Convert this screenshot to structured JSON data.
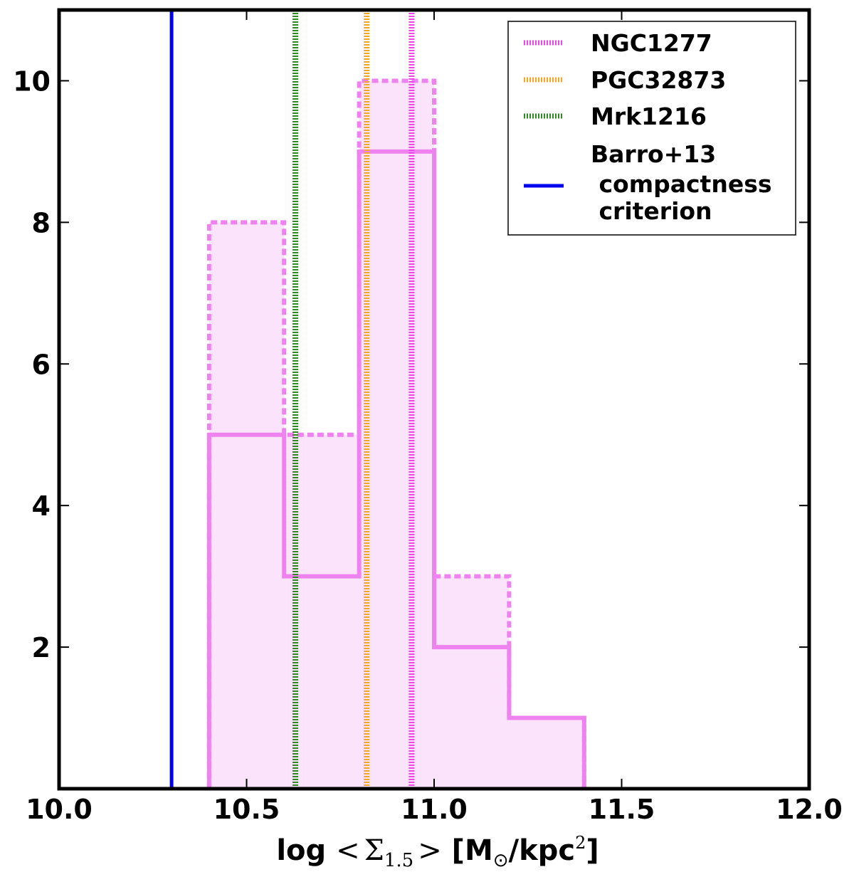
{
  "chart_data": {
    "type": "histogram",
    "xlim": [
      10.0,
      12.0
    ],
    "ylim": [
      0,
      11
    ],
    "x_ticks": [
      10.0,
      10.5,
      11.0,
      11.5,
      12.0
    ],
    "x_tick_labels": [
      "10.0",
      "10.5",
      "11.0",
      "11.5",
      "12.0"
    ],
    "y_ticks": [
      2,
      4,
      6,
      8,
      10
    ],
    "y_tick_labels": [
      "2",
      "4",
      "6",
      "8",
      "10"
    ],
    "xlabel_parts": {
      "prefix": "log ",
      "langle": "<",
      "sigma": "Σ",
      "sigma_sub": "1.5",
      "rangle": ">",
      "unit_open": " [M",
      "sun_sub": "⊙",
      "unit_mid": "/kpc",
      "unit_sup": "2",
      "unit_close": "]"
    },
    "bin_edges": [
      10.4,
      10.6,
      10.8,
      11.0,
      11.2,
      11.4
    ],
    "series": [
      {
        "style": "solid",
        "counts": [
          5,
          3,
          9,
          2,
          1
        ]
      },
      {
        "style": "dashed",
        "counts": [
          8,
          5,
          10,
          3,
          1
        ]
      }
    ],
    "vlines": [
      {
        "name": "NGC1277",
        "x": 10.94,
        "color": "#ee44ee",
        "style": "dotted"
      },
      {
        "name": "PGC32873",
        "x": 10.82,
        "color": "#f5a623",
        "style": "dotted"
      },
      {
        "name": "Mrk1216",
        "x": 10.63,
        "color": "#2e8b22",
        "style": "dotted"
      },
      {
        "name": "Barro+13 compactness criterion",
        "x": 10.3,
        "color": "#0000ee",
        "style": "solid"
      }
    ],
    "hist_color": "#ee82ee",
    "hist_fill": "#fbe4fb",
    "legend": {
      "placement": "top-right",
      "entries": [
        {
          "lines": [
            "NGC1277"
          ],
          "color": "#ee44ee",
          "style": "dotted"
        },
        {
          "lines": [
            "PGC32873"
          ],
          "color": "#f5a623",
          "style": "dotted"
        },
        {
          "lines": [
            "Mrk1216"
          ],
          "color": "#2e8b22",
          "style": "dotted"
        },
        {
          "lines": [
            "Barro+13",
            " compactness",
            " criterion"
          ],
          "color": "#0000ee",
          "style": "solid"
        }
      ]
    }
  }
}
